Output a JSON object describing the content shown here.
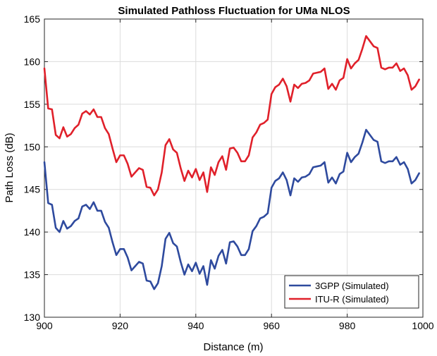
{
  "chart_data": {
    "type": "line",
    "title": "Simulated Pathloss Fluctuation for UMa NLOS",
    "xlabel": "Distance (m)",
    "ylabel": "Path Loss (dB)",
    "xlim": [
      900,
      1000
    ],
    "ylim": [
      130,
      165
    ],
    "xticks": [
      900,
      920,
      940,
      960,
      980,
      1000
    ],
    "yticks": [
      130,
      135,
      140,
      145,
      150,
      155,
      160,
      165
    ],
    "grid": true,
    "legend_position": "bottom-right",
    "series": [
      {
        "name": "3GPP (Simulated)",
        "color": "#2e4a9e",
        "x": [
          900,
          901,
          902,
          903,
          904,
          905,
          906,
          907,
          908,
          909,
          910,
          911,
          912,
          913,
          914,
          915,
          916,
          917,
          918,
          919,
          920,
          921,
          922,
          923,
          924,
          925,
          926,
          927,
          928,
          929,
          930,
          931,
          932,
          933,
          934,
          935,
          936,
          937,
          938,
          939,
          940,
          941,
          942,
          943,
          944,
          945,
          946,
          947,
          948,
          949,
          950,
          951,
          952,
          953,
          954,
          955,
          956,
          957,
          958,
          959,
          960,
          961,
          962,
          963,
          964,
          965,
          966,
          967,
          968,
          969,
          970,
          971,
          972,
          973,
          974,
          975,
          976,
          977,
          978,
          979,
          980,
          981,
          982,
          983,
          984,
          985,
          986,
          987,
          988,
          989,
          990,
          991,
          992,
          993,
          994,
          995,
          996,
          997,
          998,
          999
        ],
        "values": [
          148.2,
          143.4,
          143.2,
          140.5,
          140.0,
          141.3,
          140.4,
          140.7,
          141.3,
          141.6,
          143.0,
          143.2,
          142.7,
          143.5,
          142.5,
          142.5,
          141.2,
          140.5,
          138.8,
          137.3,
          138.0,
          138.0,
          137.0,
          135.5,
          136.0,
          136.5,
          136.3,
          134.3,
          134.2,
          133.3,
          134.0,
          136.0,
          139.2,
          139.9,
          138.7,
          138.3,
          136.5,
          135.0,
          136.2,
          135.4,
          136.4,
          135.1,
          136.0,
          133.8,
          136.7,
          135.7,
          137.2,
          137.9,
          136.3,
          138.8,
          138.9,
          138.3,
          137.3,
          137.3,
          138.0,
          140.1,
          140.7,
          141.6,
          141.8,
          142.2,
          145.2,
          146.0,
          146.3,
          147.0,
          146.1,
          144.3,
          146.3,
          145.9,
          146.4,
          146.5,
          146.8,
          147.6,
          147.7,
          147.8,
          148.2,
          145.8,
          146.4,
          145.7,
          146.8,
          147.1,
          149.3,
          148.2,
          148.8,
          149.2,
          150.5,
          152.0,
          151.4,
          150.8,
          150.6,
          148.3,
          148.1,
          148.3,
          148.3,
          148.8,
          147.9,
          148.2,
          147.4,
          145.7,
          146.1,
          146.9
        ]
      },
      {
        "name": "ITU-R (Simulated)",
        "color": "#e0202a",
        "x": [
          900,
          901,
          902,
          903,
          904,
          905,
          906,
          907,
          908,
          909,
          910,
          911,
          912,
          913,
          914,
          915,
          916,
          917,
          918,
          919,
          920,
          921,
          922,
          923,
          924,
          925,
          926,
          927,
          928,
          929,
          930,
          931,
          932,
          933,
          934,
          935,
          936,
          937,
          938,
          939,
          940,
          941,
          942,
          943,
          944,
          945,
          946,
          947,
          948,
          949,
          950,
          951,
          952,
          953,
          954,
          955,
          956,
          957,
          958,
          959,
          960,
          961,
          962,
          963,
          964,
          965,
          966,
          967,
          968,
          969,
          970,
          971,
          972,
          973,
          974,
          975,
          976,
          977,
          978,
          979,
          980,
          981,
          982,
          983,
          984,
          985,
          986,
          987,
          988,
          989,
          990,
          991,
          992,
          993,
          994,
          995,
          996,
          997,
          998,
          999
        ],
        "values": [
          159.2,
          154.5,
          154.4,
          151.4,
          151.0,
          152.3,
          151.2,
          151.5,
          152.2,
          152.6,
          153.9,
          154.2,
          153.8,
          154.4,
          153.5,
          153.5,
          152.2,
          151.5,
          149.8,
          148.2,
          149.0,
          149.0,
          148.0,
          146.5,
          147.0,
          147.5,
          147.3,
          145.3,
          145.2,
          144.3,
          145.0,
          147.0,
          150.2,
          150.9,
          149.7,
          149.3,
          147.5,
          146.0,
          147.2,
          146.4,
          147.4,
          146.1,
          147.0,
          144.7,
          147.6,
          146.7,
          148.2,
          148.9,
          147.3,
          149.8,
          149.9,
          149.3,
          148.3,
          148.3,
          149.0,
          151.1,
          151.7,
          152.6,
          152.8,
          153.2,
          156.2,
          157.0,
          157.3,
          158.0,
          157.1,
          155.3,
          157.3,
          156.9,
          157.4,
          157.5,
          157.8,
          158.6,
          158.7,
          158.8,
          159.2,
          156.8,
          157.4,
          156.7,
          157.8,
          158.1,
          160.3,
          159.2,
          159.8,
          160.2,
          161.5,
          163.0,
          162.4,
          161.8,
          161.6,
          159.3,
          159.1,
          159.3,
          159.3,
          159.8,
          158.9,
          159.2,
          158.4,
          156.7,
          157.1,
          157.9
        ]
      }
    ]
  }
}
